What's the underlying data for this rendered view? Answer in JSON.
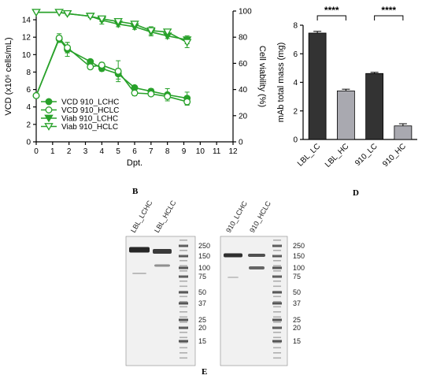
{
  "chart_data": [
    {
      "type": "line",
      "panel_label": "B",
      "xlabel": "Dpt.",
      "ylabel": "VCD (x10⁶ cells/mL)",
      "y2label": "Cell viability (%)",
      "xlim": [
        0,
        12
      ],
      "ylim": [
        0,
        15
      ],
      "y2lim": [
        0,
        100
      ],
      "x_ticks": [
        0,
        1,
        2,
        3,
        4,
        5,
        6,
        7,
        8,
        9,
        10,
        11,
        12
      ],
      "y_ticks": [
        0,
        2,
        4,
        6,
        8,
        10,
        12,
        14
      ],
      "y2_ticks": [
        0,
        20,
        40,
        60,
        80,
        100
      ],
      "legend_position": "bottom-left",
      "series": [
        {
          "name": "VCD 910_LCHC",
          "axis": "left",
          "marker": "filled-circle",
          "x": [
            0,
            1.4,
            1.9,
            3.3,
            4,
            5,
            6,
            7,
            8,
            9.2
          ],
          "y": [
            5.3,
            11.8,
            10.6,
            9.2,
            8.4,
            7.8,
            6.2,
            5.8,
            5.4,
            5.0
          ],
          "err": [
            0,
            0.4,
            0.8,
            0.2,
            0.3,
            0.6,
            0.2,
            0.3,
            0.7,
            0.7
          ]
        },
        {
          "name": "VCD 910_HCLC",
          "axis": "left",
          "marker": "open-circle",
          "x": [
            0,
            1.4,
            1.9,
            3.3,
            4,
            5,
            6,
            7,
            8,
            9.2
          ],
          "y": [
            5.3,
            11.9,
            10.8,
            8.6,
            8.8,
            8.1,
            5.6,
            5.5,
            5.2,
            4.6
          ],
          "err": [
            0,
            0.5,
            0.6,
            0.2,
            0.3,
            1.2,
            0.3,
            0.2,
            0.3,
            0.4
          ]
        },
        {
          "name": "Viab 910_LCHC",
          "axis": "right",
          "marker": "filled-triangle-down",
          "x": [
            0,
            1.4,
            1.9,
            3.3,
            4,
            5,
            6,
            7,
            8,
            9.2
          ],
          "y": [
            99,
            99,
            98,
            96,
            93,
            90,
            88,
            84,
            81,
            78
          ],
          "err": [
            0,
            0,
            1,
            1,
            3,
            2,
            2,
            3,
            2,
            3
          ]
        },
        {
          "name": "Viab 910_HCLC",
          "axis": "right",
          "marker": "open-triangle-down",
          "x": [
            0,
            1.4,
            1.9,
            3.3,
            4,
            5,
            6,
            7,
            8,
            9.2
          ],
          "y": [
            99,
            99,
            98,
            96,
            94,
            92,
            90,
            85,
            84,
            76
          ],
          "err": [
            0,
            0,
            1,
            1,
            2,
            2,
            2,
            3,
            2,
            4
          ]
        }
      ]
    },
    {
      "type": "bar",
      "panel_label": "D",
      "ylabel": "mAb total mass (mg)",
      "ylim": [
        0,
        8
      ],
      "y_ticks": [
        0,
        2,
        4,
        6,
        8
      ],
      "categories": [
        "LBL_LC",
        "LBL_HC",
        "910_LC",
        "910_HC"
      ],
      "values": [
        7.45,
        3.4,
        4.62,
        0.95
      ],
      "err": [
        0.12,
        0.12,
        0.08,
        0.15
      ],
      "colors": [
        "#333333",
        "#a9a9b0",
        "#333333",
        "#a9a9b0"
      ],
      "significance": [
        {
          "from": 0,
          "to": 1,
          "label": "****"
        },
        {
          "from": 2,
          "to": 3,
          "label": "****"
        }
      ]
    }
  ],
  "gel": {
    "panel_label": "E",
    "left": {
      "lanes": [
        "LBL_LCHC",
        "LBL_HCLC"
      ],
      "markers": [
        "250",
        "150",
        "100",
        "75",
        "50",
        "37",
        "25",
        "20",
        "15"
      ]
    },
    "right": {
      "lanes": [
        "910_LCHC",
        "910_HCLC"
      ],
      "markers": [
        "250",
        "150",
        "100",
        "75",
        "50",
        "37",
        "25",
        "20",
        "15"
      ]
    },
    "colors": {
      "background": "#f1f1f1",
      "band": "#1a1a1a"
    }
  }
}
